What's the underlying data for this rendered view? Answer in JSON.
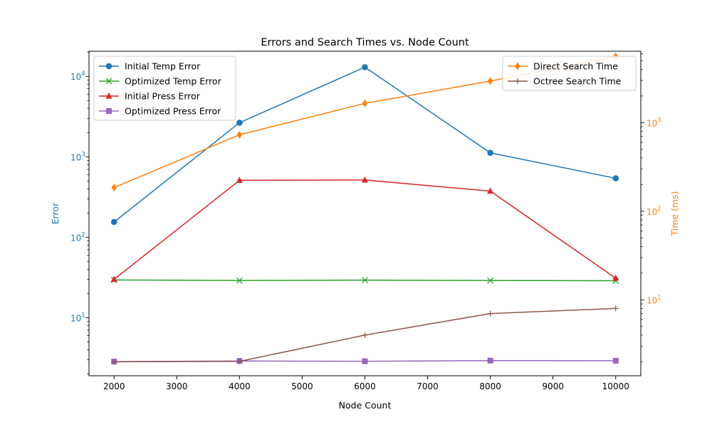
{
  "chart_data": {
    "type": "line",
    "title": "Errors and Search Times vs. Node Count",
    "xlabel": "Node Count",
    "ylabel_left": "Error",
    "ylabel_right": "Time (ms)",
    "x": [
      2000,
      4000,
      6000,
      8000,
      10000
    ],
    "xlim": [
      1600,
      10400
    ],
    "xticks": [
      2000,
      3000,
      4000,
      5000,
      6000,
      7000,
      8000,
      9000,
      10000
    ],
    "xtick_labels": [
      "2000",
      "3000",
      "4000",
      "5000",
      "6000",
      "7000",
      "8000",
      "9000",
      "10000"
    ],
    "left_axis": {
      "scale": "log",
      "ylim": [
        1.9,
        20500
      ],
      "major_ticks": [
        10,
        100,
        1000,
        10000
      ],
      "tick_base": [
        "10",
        "10",
        "10",
        "10"
      ],
      "tick_exp": [
        "1",
        "2",
        "3",
        "4"
      ],
      "color": "#1f77b4"
    },
    "right_axis": {
      "scale": "log",
      "ylim": [
        1.39,
        6400
      ],
      "major_ticks": [
        10,
        100,
        1000
      ],
      "tick_base": [
        "10",
        "10",
        "10"
      ],
      "tick_exp": [
        "1",
        "2",
        "3"
      ],
      "color": "#ff7f0e"
    },
    "grid": false,
    "series_left": [
      {
        "name": "Initial Temp Error",
        "color": "#1f77b4",
        "marker": "circle",
        "values": [
          155,
          2650,
          13000,
          1120,
          540
        ]
      },
      {
        "name": "Optimized Temp Error",
        "color": "#2ca02c",
        "marker": "x",
        "values": [
          29.5,
          29,
          29.3,
          29,
          28.8
        ]
      },
      {
        "name": "Initial Press Error",
        "color": "#d62728",
        "marker": "triangle",
        "values": [
          30,
          510,
          515,
          375,
          31
        ]
      },
      {
        "name": "Optimized Press Error",
        "color": "#9467bd",
        "marker": "square",
        "values": [
          2.85,
          2.9,
          2.88,
          2.93,
          2.92
        ]
      }
    ],
    "series_right": [
      {
        "name": "Direct Search Time",
        "color": "#ff7f0e",
        "marker": "diamond",
        "values": [
          185,
          730,
          1650,
          2950,
          5600
        ]
      },
      {
        "name": "Octree Search Time",
        "color": "#8c564b",
        "marker": "plus",
        "values": [
          2,
          2.02,
          4,
          7,
          8
        ]
      }
    ],
    "legend_left_placement": "upper-left",
    "legend_right_placement": "upper-right"
  }
}
